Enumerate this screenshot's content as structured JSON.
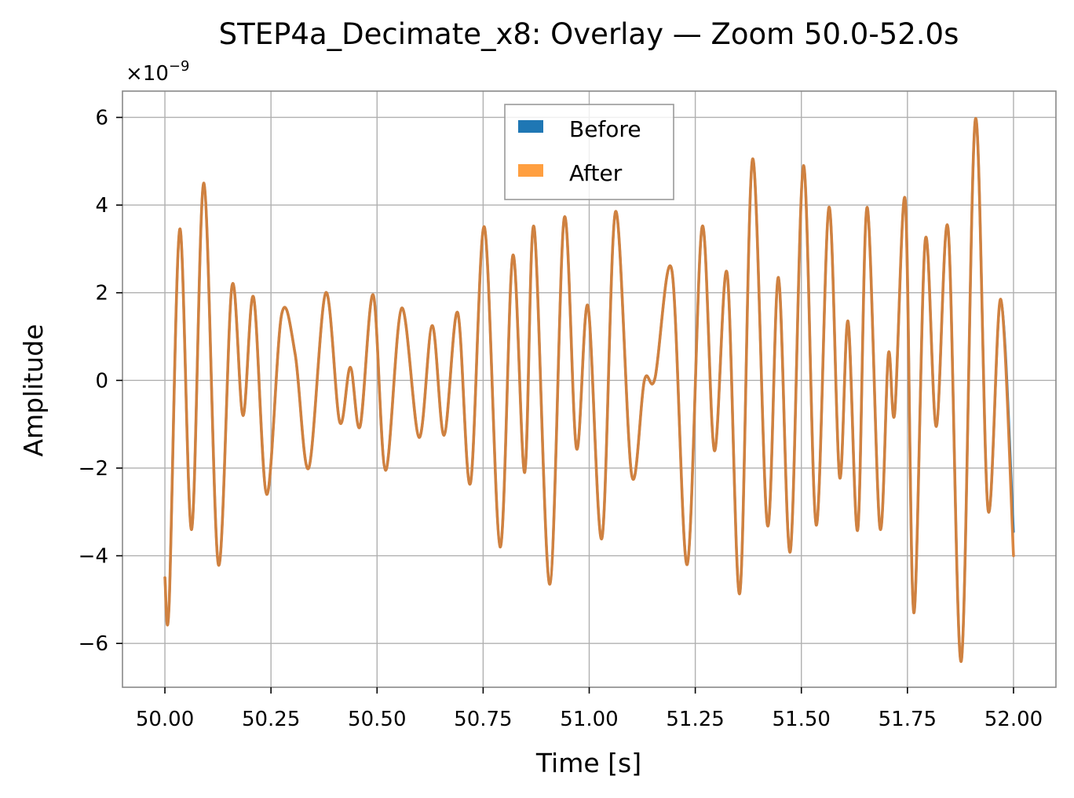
{
  "colors": {
    "before": "#1f77b4",
    "after": "#ff9f40",
    "after_line": "#d9823a",
    "grid": "#b0b0b0",
    "frame": "#888888"
  },
  "chart_data": {
    "type": "line",
    "title": "STEP4a_Decimate_x8: Overlay — Zoom 50.0-52.0s",
    "xlabel": "Time [s]",
    "ylabel": "Amplitude",
    "y_scale_multiplier": "×10",
    "y_scale_exponent": "−9",
    "xlim": [
      49.9,
      52.1
    ],
    "ylim": [
      -7.0,
      6.6
    ],
    "grid": true,
    "legend_position": "top-center",
    "x_ticks": [
      50.0,
      50.25,
      50.5,
      50.75,
      51.0,
      51.25,
      51.5,
      51.75,
      52.0
    ],
    "x_tick_labels": [
      "50.00",
      "50.25",
      "50.50",
      "50.75",
      "51.00",
      "51.25",
      "51.50",
      "51.75",
      "52.00"
    ],
    "y_ticks": [
      -6,
      -4,
      -2,
      0,
      2,
      4,
      6
    ],
    "y_tick_labels": [
      "−6",
      "−4",
      "−2",
      "0",
      "2",
      "4",
      "6"
    ],
    "series": [
      {
        "name": "Before",
        "x": [
          50.0,
          50.01,
          50.035,
          50.063,
          50.092,
          50.126,
          50.158,
          50.184,
          50.209,
          50.24,
          50.275,
          50.307,
          50.339,
          50.379,
          50.412,
          50.437,
          50.46,
          50.491,
          50.52,
          50.558,
          50.599,
          50.63,
          50.658,
          50.69,
          50.72,
          50.753,
          50.79,
          50.82,
          50.848,
          50.87,
          50.907,
          50.941,
          50.97,
          50.997,
          51.03,
          51.062,
          51.1,
          51.13,
          51.155,
          51.195,
          51.231,
          51.266,
          51.295,
          51.325,
          51.355,
          51.385,
          51.42,
          51.446,
          51.474,
          51.505,
          51.535,
          51.565,
          51.59,
          51.61,
          51.633,
          51.655,
          51.685,
          51.705,
          51.72,
          51.745,
          51.765,
          51.792,
          51.818,
          51.846,
          51.877,
          51.91,
          51.94,
          51.97,
          52.0
        ],
        "y": [
          -4.5,
          -5.1,
          3.45,
          -3.4,
          4.5,
          -4.2,
          2.15,
          -0.8,
          1.9,
          -2.6,
          1.5,
          0.6,
          -2.0,
          2.0,
          -0.95,
          0.3,
          -1.05,
          1.95,
          -2.05,
          1.65,
          -1.3,
          1.25,
          -1.25,
          1.55,
          -2.35,
          3.5,
          -3.8,
          2.85,
          -2.1,
          3.5,
          -4.65,
          3.7,
          -1.55,
          1.7,
          -3.6,
          3.85,
          -2.15,
          0.0,
          0.05,
          2.5,
          -4.2,
          3.5,
          -1.6,
          2.45,
          -4.85,
          5.05,
          -3.3,
          2.35,
          -3.9,
          4.9,
          -3.3,
          3.95,
          -2.2,
          1.35,
          -3.4,
          3.95,
          -3.35,
          0.6,
          -0.75,
          4.1,
          -5.3,
          3.2,
          -1.05,
          3.45,
          -6.4,
          5.95,
          -2.95,
          1.85,
          -3.45
        ]
      },
      {
        "name": "After",
        "x": [
          50.0,
          50.01,
          50.035,
          50.063,
          50.092,
          50.126,
          50.158,
          50.184,
          50.209,
          50.24,
          50.275,
          50.307,
          50.339,
          50.379,
          50.412,
          50.437,
          50.46,
          50.491,
          50.52,
          50.558,
          50.599,
          50.63,
          50.658,
          50.69,
          50.72,
          50.753,
          50.79,
          50.82,
          50.848,
          50.87,
          50.907,
          50.941,
          50.97,
          50.997,
          51.03,
          51.062,
          51.1,
          51.13,
          51.155,
          51.195,
          51.231,
          51.266,
          51.295,
          51.325,
          51.355,
          51.385,
          51.42,
          51.446,
          51.474,
          51.505,
          51.535,
          51.565,
          51.59,
          51.61,
          51.633,
          51.655,
          51.685,
          51.705,
          51.72,
          51.745,
          51.765,
          51.792,
          51.818,
          51.846,
          51.877,
          51.91,
          51.94,
          51.97,
          52.0
        ],
        "y": [
          -4.5,
          -5.1,
          3.45,
          -3.4,
          4.5,
          -4.2,
          2.15,
          -0.8,
          1.9,
          -2.6,
          1.5,
          0.6,
          -2.0,
          2.0,
          -0.95,
          0.3,
          -1.05,
          1.95,
          -2.05,
          1.65,
          -1.3,
          1.25,
          -1.25,
          1.55,
          -2.35,
          3.5,
          -3.8,
          2.85,
          -2.1,
          3.5,
          -4.65,
          3.7,
          -1.55,
          1.7,
          -3.6,
          3.85,
          -2.15,
          0.0,
          0.05,
          2.5,
          -4.2,
          3.5,
          -1.6,
          2.45,
          -4.85,
          5.05,
          -3.3,
          2.35,
          -3.9,
          4.9,
          -3.3,
          3.95,
          -2.2,
          1.35,
          -3.4,
          3.95,
          -3.35,
          0.6,
          -0.75,
          4.1,
          -5.3,
          3.2,
          -1.05,
          3.45,
          -6.4,
          5.95,
          -2.95,
          1.85,
          -4.0
        ]
      }
    ]
  }
}
